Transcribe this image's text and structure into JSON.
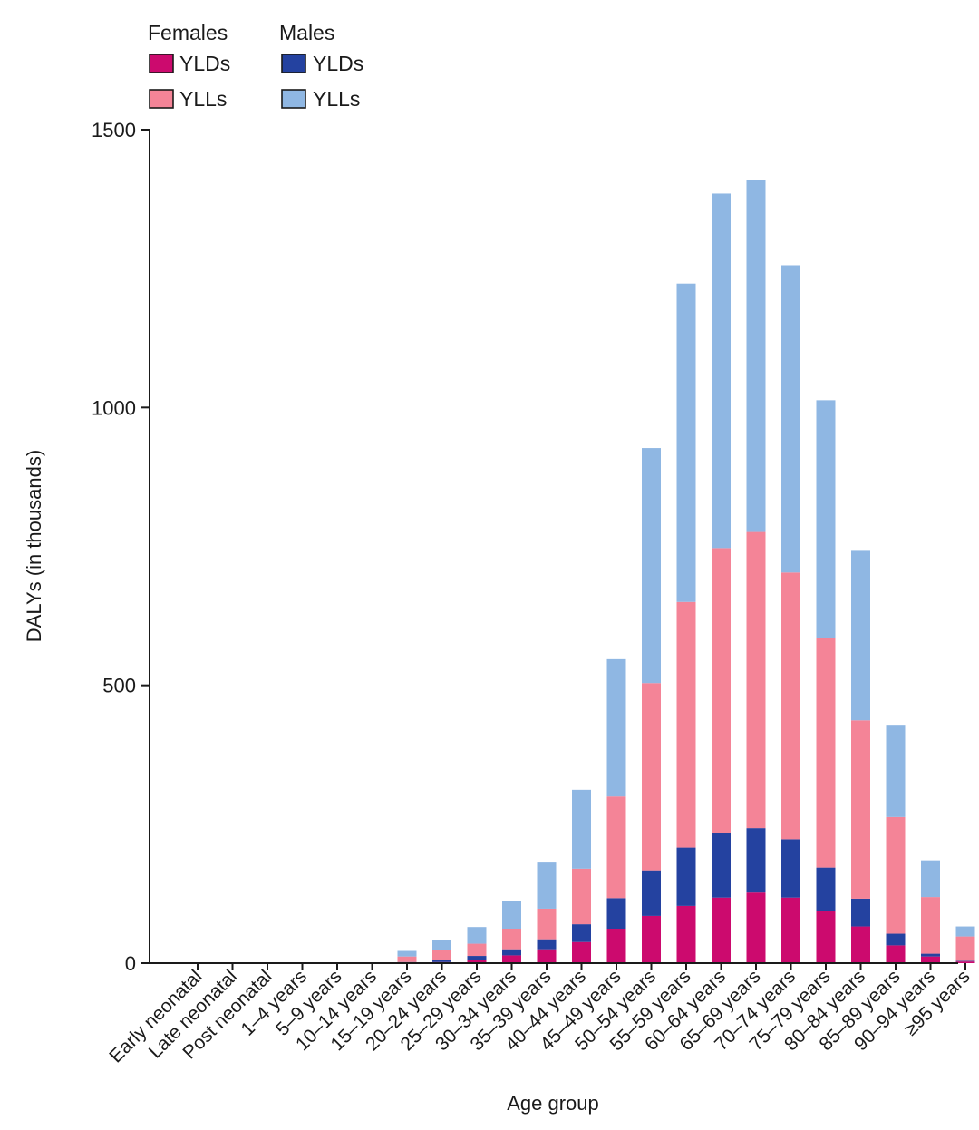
{
  "chart_data": {
    "type": "bar",
    "stacked": true,
    "xlabel": "Age group",
    "ylabel": "DALYs (in thousands)",
    "ylim": [
      0,
      1500
    ],
    "yticks": [
      0,
      500,
      1000,
      1500
    ],
    "grid": false,
    "legend": {
      "placement": "top-left",
      "groups": [
        {
          "title": "Females",
          "items": [
            {
              "label": "YLDs",
              "color": "#CC0A6E"
            },
            {
              "label": "YLLs",
              "color": "#F48497"
            }
          ]
        },
        {
          "title": "Males",
          "items": [
            {
              "label": "YLDs",
              "color": "#2442A0"
            },
            {
              "label": "YLLs",
              "color": "#8FB7E3"
            }
          ]
        }
      ]
    },
    "categories": [
      "Early neonatal",
      "Late neonatal",
      "Post neonatal",
      "1–4 years",
      "5–9 years",
      "10–14 years",
      "15–19 years",
      "20–24 years",
      "25–29 years",
      "30–34 years",
      "35–39 years",
      "40–44 years",
      "45–49 years",
      "50–54 years",
      "55–59 years",
      "60–64 years",
      "65–69 years",
      "70–74 years",
      "75–79 years",
      "80–84 years",
      "85–89 years",
      "90–94 years",
      "≥95 years"
    ],
    "series": [
      {
        "group": "Females",
        "name": "YLDs",
        "color": "#CC0A6E",
        "values": [
          0,
          0,
          0,
          0,
          0,
          0,
          1,
          2,
          6,
          14,
          25,
          38,
          62,
          85,
          103,
          118,
          127,
          118,
          94,
          66,
          32,
          12,
          3
        ]
      },
      {
        "group": "Males",
        "name": "YLDs",
        "color": "#2442A0",
        "values": [
          0,
          0,
          0,
          0,
          0,
          0,
          1,
          3,
          7,
          11,
          18,
          32,
          55,
          82,
          105,
          116,
          116,
          105,
          78,
          50,
          21,
          5,
          1
        ]
      },
      {
        "group": "Females",
        "name": "YLLs",
        "color": "#F48497",
        "values": [
          0,
          0,
          0,
          0,
          0,
          0,
          10,
          18,
          22,
          37,
          55,
          100,
          183,
          337,
          442,
          513,
          533,
          480,
          413,
          321,
          210,
          102,
          44
        ]
      },
      {
        "group": "Males",
        "name": "YLLs",
        "color": "#8FB7E3",
        "values": [
          0,
          0,
          0,
          0,
          0,
          0,
          10,
          19,
          30,
          50,
          83,
          142,
          247,
          423,
          573,
          638,
          634,
          553,
          428,
          305,
          166,
          66,
          18
        ]
      }
    ]
  }
}
